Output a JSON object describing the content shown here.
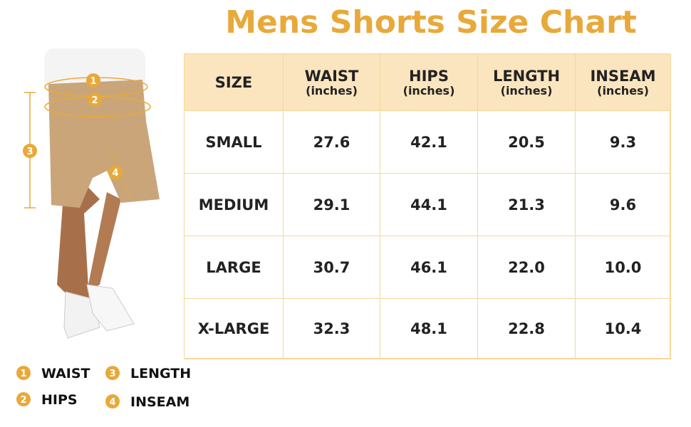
{
  "title": "Mens Shorts Size Chart",
  "table": {
    "header": [
      {
        "label": "SIZE"
      },
      {
        "label": "WAIST",
        "unit": "(inches)"
      },
      {
        "label": "HIPS",
        "unit": "(inches)"
      },
      {
        "label": "LENGTH",
        "unit": "(inches)"
      },
      {
        "label": "INSEAM",
        "unit": "(inches)"
      }
    ],
    "rows": [
      [
        "SMALL",
        "27.6",
        "42.1",
        "20.5",
        "9.3"
      ],
      [
        "MEDIUM",
        "29.1",
        "44.1",
        "21.3",
        "9.6"
      ],
      [
        "LARGE",
        "30.7",
        "46.1",
        "22.0",
        "10.0"
      ],
      [
        "X-LARGE",
        "32.3",
        "48.1",
        "22.8",
        "10.4"
      ]
    ]
  },
  "legend": [
    {
      "number": "1",
      "label": "WAIST"
    },
    {
      "number": "2",
      "label": "HIPS"
    },
    {
      "number": "3",
      "label": "LENGTH"
    },
    {
      "number": "4",
      "label": "INSEAM"
    }
  ]
}
